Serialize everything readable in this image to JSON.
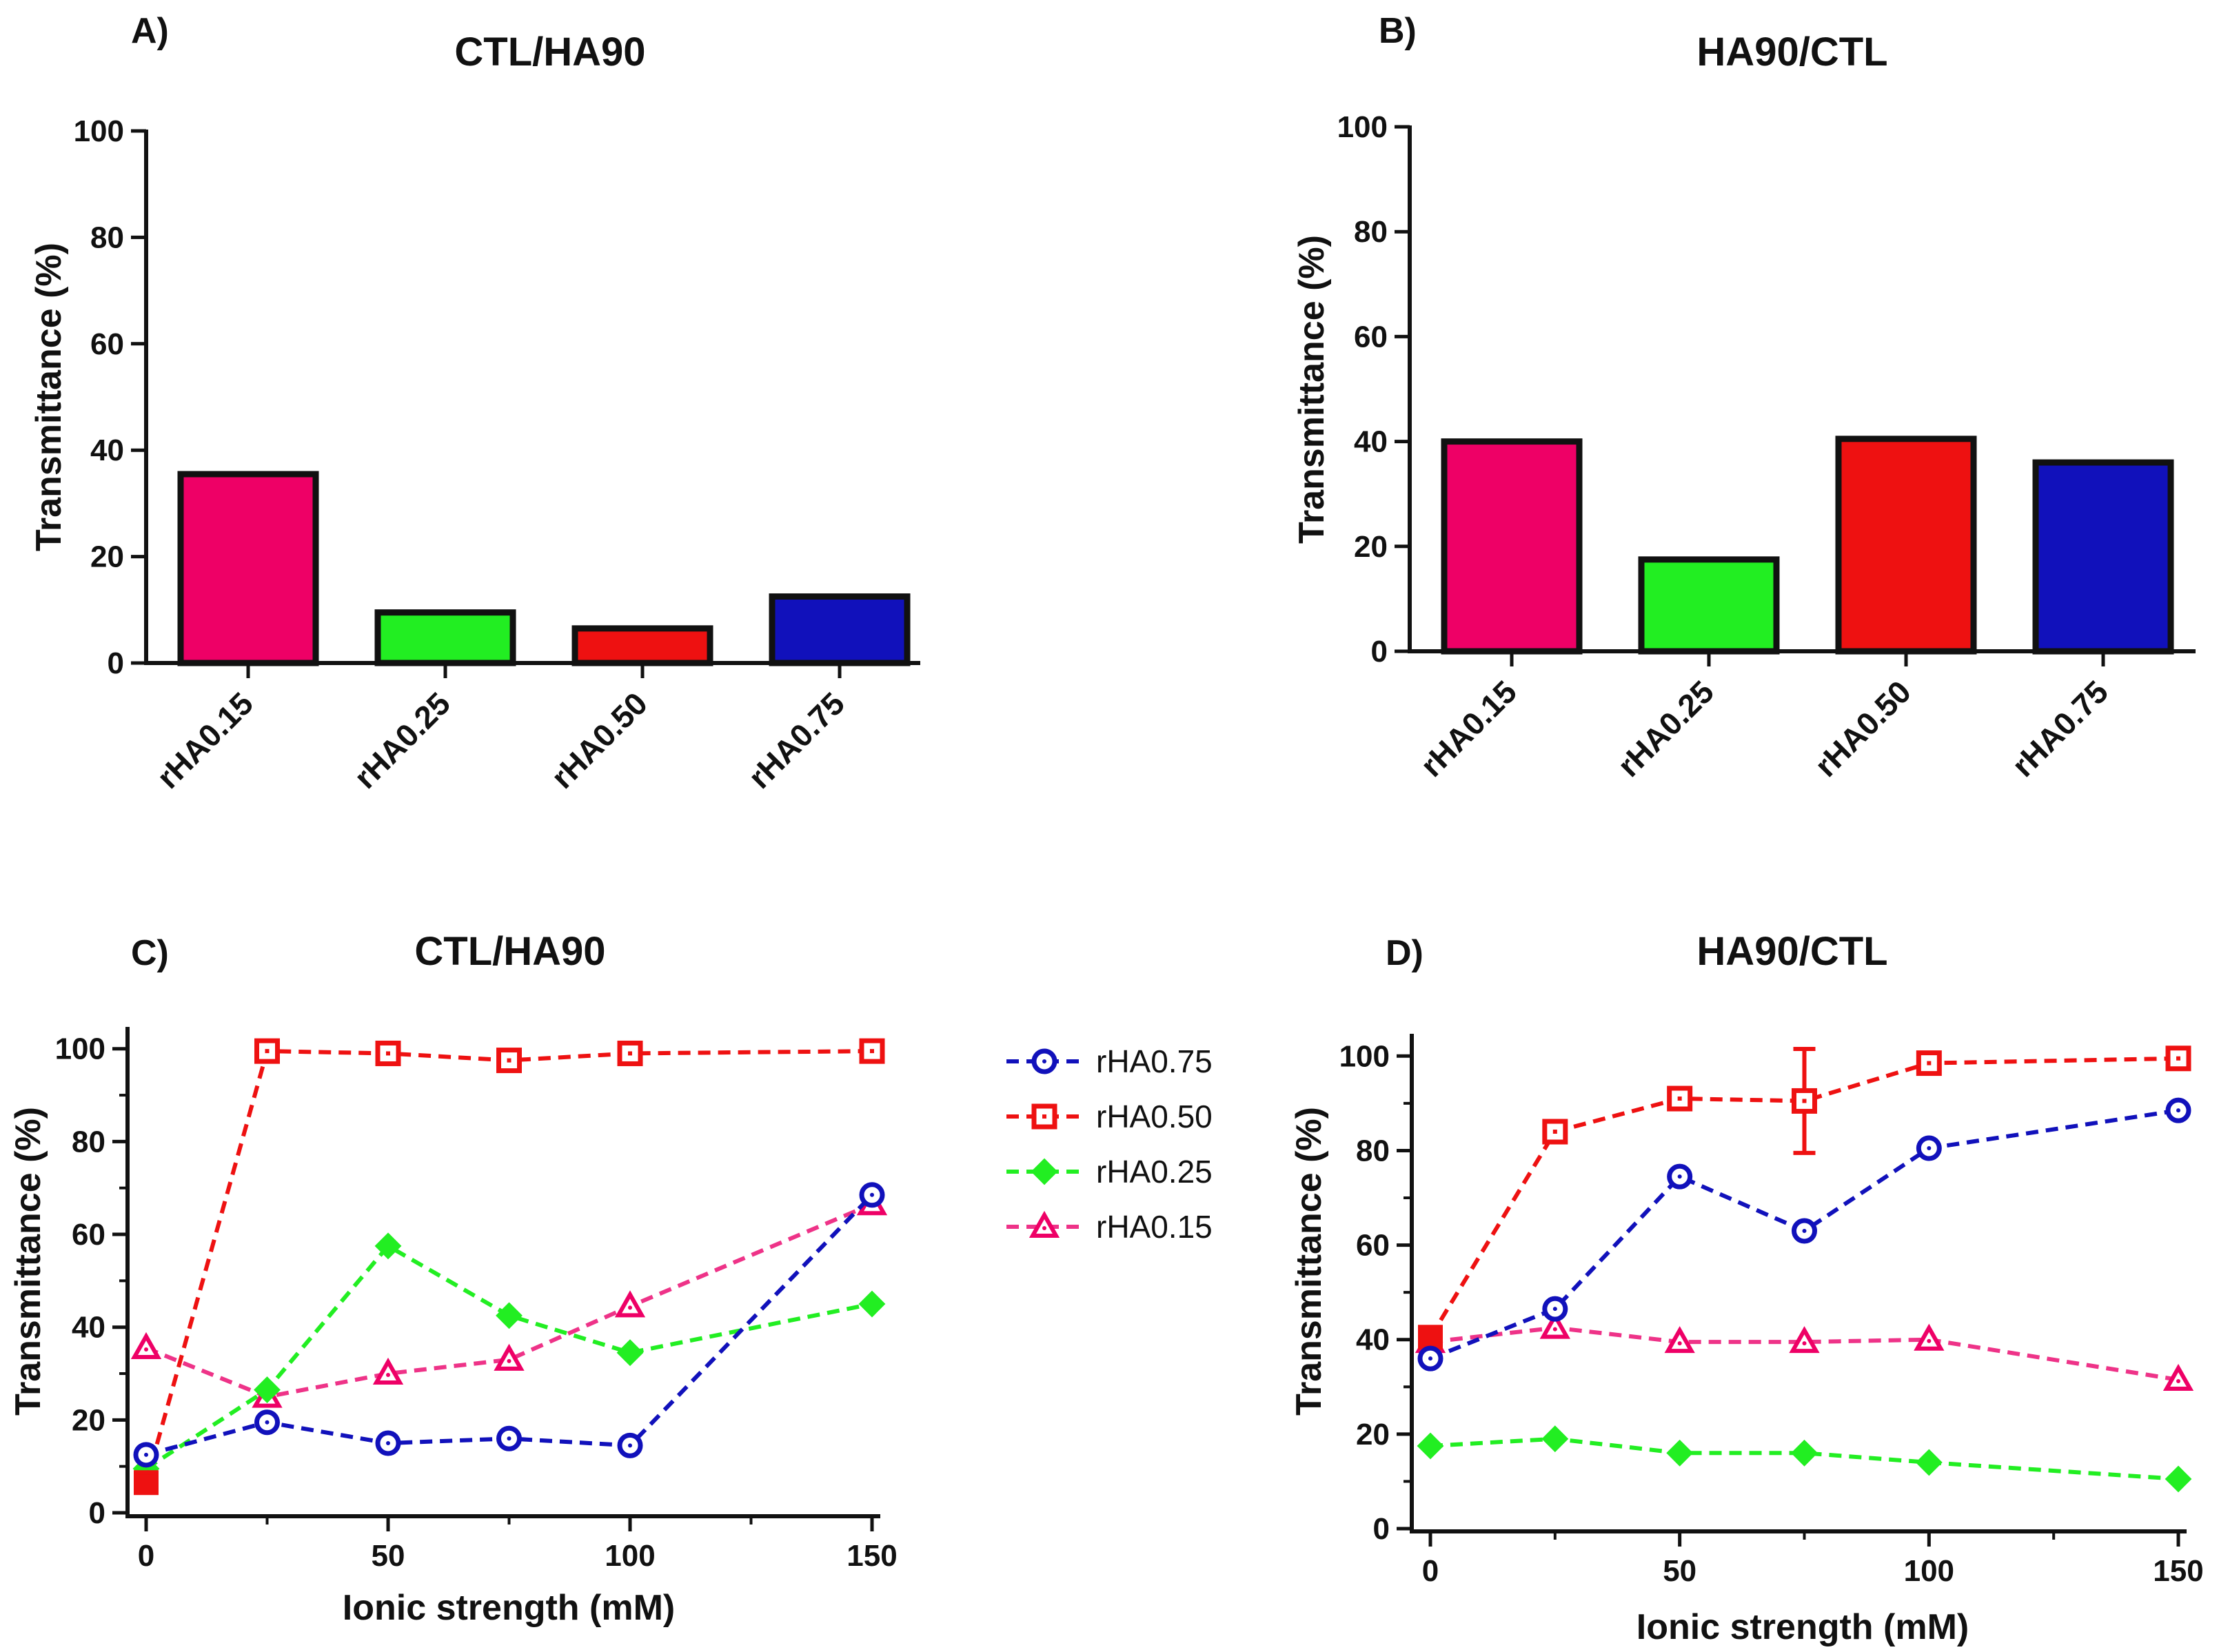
{
  "colors": {
    "rHA0.15": "#ee0066",
    "rHA0.25": "#22ee22",
    "rHA0.50": "#ee1111",
    "rHA0.75": "#1111bb",
    "line_rHA0.15": "#ee3388",
    "axis": "#111111"
  },
  "legend": {
    "entries": [
      {
        "name": "rHA0.75",
        "marker": "circle-icon"
      },
      {
        "name": "rHA0.50",
        "marker": "square-icon"
      },
      {
        "name": "rHA0.25",
        "marker": "diamond-icon"
      },
      {
        "name": "rHA0.15",
        "marker": "triangle-icon"
      }
    ]
  },
  "chart_data": [
    {
      "id": "A",
      "letter": "A)",
      "type": "bar",
      "title": "CTL/HA90",
      "xlabel": "",
      "ylabel": "Transmittance (%)",
      "ylim": [
        0,
        100
      ],
      "yticks": [
        0,
        20,
        40,
        60,
        80,
        100
      ],
      "categories": [
        "rHA0.15",
        "rHA0.25",
        "rHA0.50",
        "rHA0.75"
      ],
      "values": [
        35.5,
        9.5,
        6.5,
        12.5
      ],
      "grid": false
    },
    {
      "id": "B",
      "letter": "B)",
      "type": "bar",
      "title": "HA90/CTL",
      "xlabel": "",
      "ylabel": "Transmittance (%)",
      "ylim": [
        0,
        100
      ],
      "yticks": [
        0,
        20,
        40,
        60,
        80,
        100
      ],
      "categories": [
        "rHA0.15",
        "rHA0.25",
        "rHA0.50",
        "rHA0.75"
      ],
      "values": [
        40,
        17.5,
        40.5,
        36
      ],
      "grid": false
    },
    {
      "id": "C",
      "letter": "C)",
      "type": "line",
      "title": "CTL/HA90",
      "xlabel": "Ionic strength (mM)",
      "ylabel": "Transmittance (%)",
      "xlim": [
        0,
        150
      ],
      "ylim": [
        0,
        100
      ],
      "xticks": [
        0,
        50,
        100,
        150
      ],
      "yticks": [
        0,
        20,
        40,
        60,
        80,
        100
      ],
      "x": [
        0,
        25,
        50,
        75,
        100,
        150
      ],
      "series": [
        {
          "name": "rHA0.75",
          "marker": "circle",
          "values": [
            12.5,
            19.5,
            15,
            16,
            14.5,
            68.5
          ]
        },
        {
          "name": "rHA0.50",
          "marker": "square",
          "values": [
            6.5,
            99.5,
            99,
            97.5,
            99,
            99.5
          ]
        },
        {
          "name": "rHA0.25",
          "marker": "diamond",
          "values": [
            9.5,
            26.5,
            57.5,
            42.5,
            34.5,
            45
          ]
        },
        {
          "name": "rHA0.15",
          "marker": "triangle",
          "values": [
            35.5,
            25,
            30,
            33,
            44.5,
            66.5
          ]
        }
      ],
      "grid": false
    },
    {
      "id": "D",
      "letter": "D)",
      "type": "line",
      "title": "HA90/CTL",
      "xlabel": "Ionic strength (mM)",
      "ylabel": "Transmittance (%)",
      "xlim": [
        0,
        150
      ],
      "ylim": [
        0,
        100
      ],
      "xticks": [
        0,
        50,
        100,
        150
      ],
      "yticks": [
        0,
        20,
        40,
        60,
        80,
        100
      ],
      "x": [
        0,
        25,
        50,
        75,
        100,
        150
      ],
      "series": [
        {
          "name": "rHA0.75",
          "marker": "circle",
          "values": [
            36,
            46.5,
            74.5,
            63,
            80.5,
            88.5
          ]
        },
        {
          "name": "rHA0.50",
          "marker": "square",
          "values": [
            40.5,
            84,
            91,
            90.5,
            98.5,
            99.5
          ],
          "errors": [
            0,
            0,
            0,
            11,
            0,
            0
          ]
        },
        {
          "name": "rHA0.25",
          "marker": "diamond",
          "values": [
            17.5,
            19,
            16,
            16,
            14,
            10.5
          ]
        },
        {
          "name": "rHA0.15",
          "marker": "triangle",
          "values": [
            39.5,
            42.5,
            39.5,
            39.5,
            40,
            31.5
          ]
        }
      ],
      "grid": false
    }
  ]
}
